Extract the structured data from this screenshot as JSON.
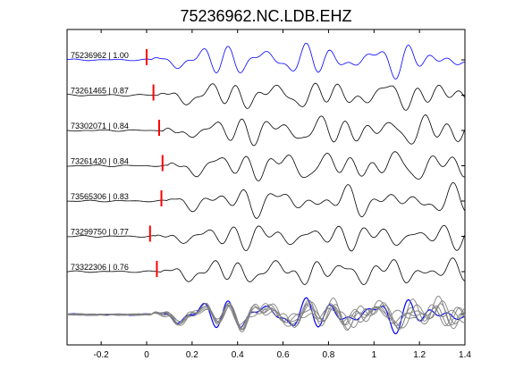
{
  "chart_data": {
    "type": "line",
    "title": "75236962.NC.LDB.EHZ",
    "xlim": [
      -0.35,
      1.4
    ],
    "xticks": [
      -0.2,
      0,
      0.2,
      0.4,
      0.6,
      0.8,
      1,
      1.2,
      1.4
    ],
    "xtick_labels": [
      "-0.2",
      "0",
      "0.2",
      "0.4",
      "0.6",
      "0.8",
      "1",
      "1.2",
      "1.4"
    ],
    "xlabel": "",
    "ylabel": "",
    "grid": false,
    "colors": {
      "reference": "#0000ff",
      "traces": "#000000",
      "overlay": "#808080",
      "pick": "#ff0000"
    },
    "series": [
      {
        "name": "75236962 | 1.00",
        "id": "75236962",
        "cc": 1.0,
        "pick": 0.0,
        "reference": true,
        "seed": 1
      },
      {
        "name": "73261465 | 0.87",
        "id": "73261465",
        "cc": 0.87,
        "pick": 0.03,
        "seed": 2
      },
      {
        "name": "73302071 | 0.84",
        "id": "73302071",
        "cc": 0.84,
        "pick": 0.055,
        "seed": 3
      },
      {
        "name": "73261430 | 0.84",
        "id": "73261430",
        "cc": 0.84,
        "pick": 0.07,
        "seed": 4
      },
      {
        "name": "73565306 | 0.83",
        "id": "73565306",
        "cc": 0.83,
        "pick": 0.065,
        "seed": 5
      },
      {
        "name": "73299750 | 0.77",
        "id": "73299750",
        "cc": 0.77,
        "pick": 0.015,
        "seed": 6
      },
      {
        "name": "73322306 | 0.76",
        "id": "73322306",
        "cc": 0.76,
        "pick": 0.045,
        "seed": 7
      }
    ],
    "overlay": {
      "description_visible": false
    }
  }
}
